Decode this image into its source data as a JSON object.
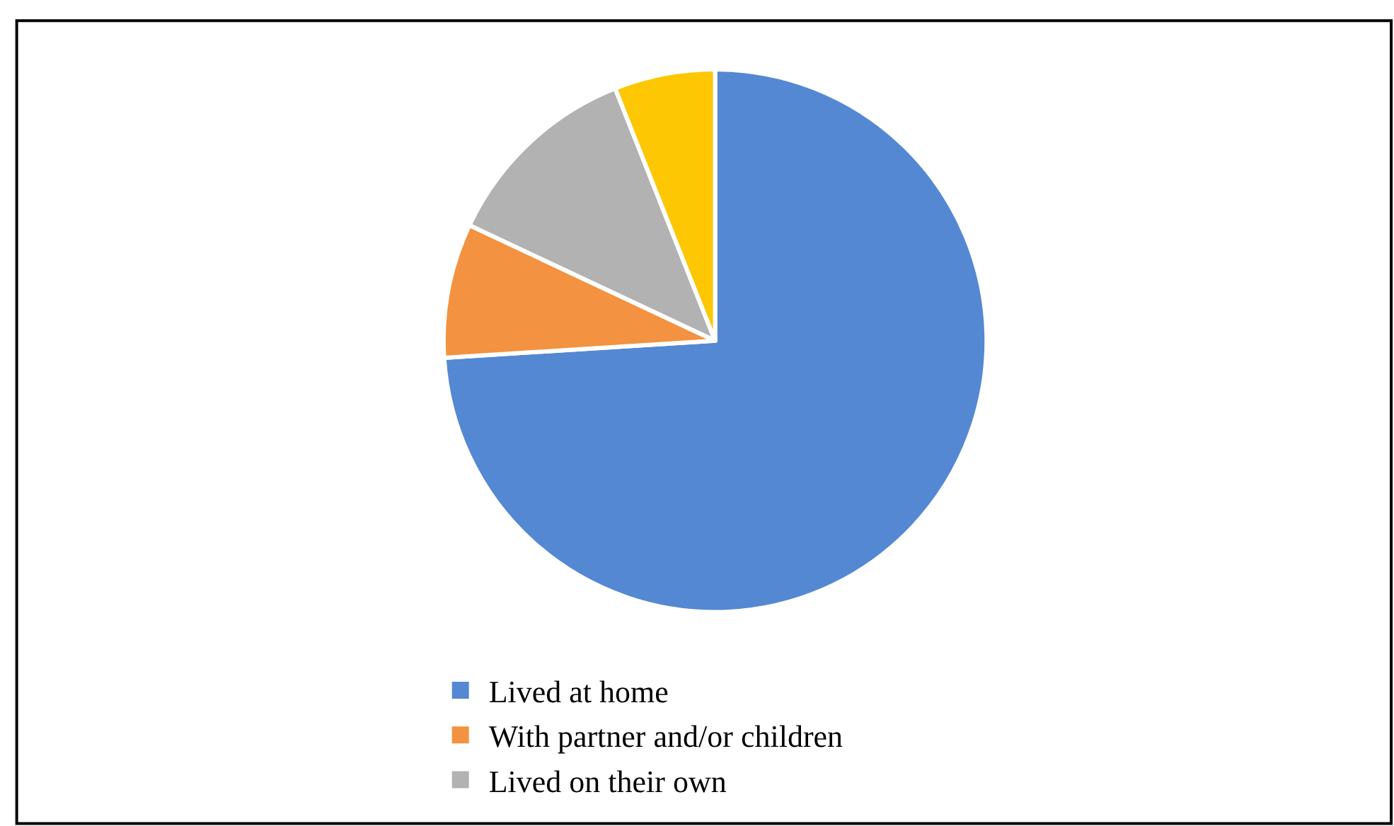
{
  "chart_data": {
    "type": "pie",
    "categories": [
      "Lived at home",
      "With partner and/or children",
      "Lived on their own",
      null
    ],
    "values": [
      74,
      8,
      12,
      6
    ],
    "colors": [
      "#5588d2",
      "#f39240",
      "#b2b2b2",
      "#fdc704"
    ],
    "legend": "bottom"
  }
}
